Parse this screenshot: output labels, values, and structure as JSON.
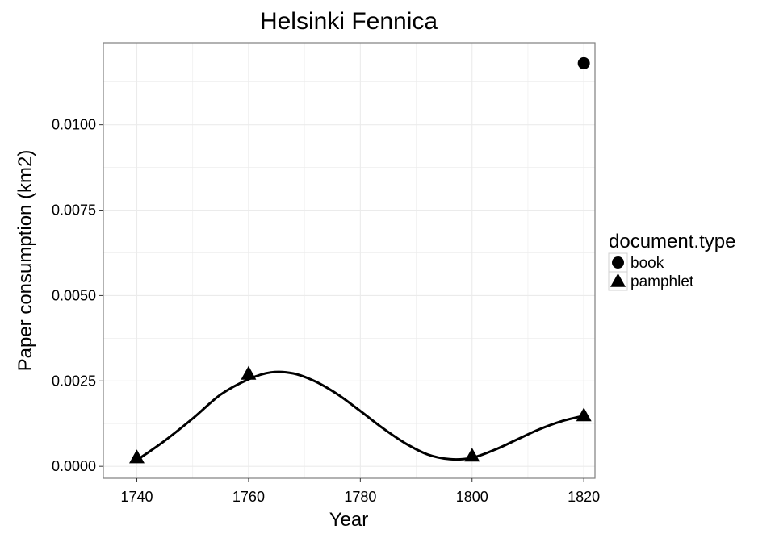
{
  "chart_data": {
    "type": "line",
    "title": "Helsinki Fennica",
    "xlabel": "Year",
    "ylabel": "Paper consumption (km2)",
    "xlim": [
      1734,
      1822
    ],
    "ylim": [
      -0.00035,
      0.0124
    ],
    "x_ticks": [
      1740,
      1760,
      1780,
      1800,
      1820
    ],
    "x_tick_labels": [
      "1740",
      "1760",
      "1780",
      "1800",
      "1820"
    ],
    "y_ticks": [
      0.0,
      0.0025,
      0.005,
      0.0075,
      0.01
    ],
    "y_tick_labels": [
      "0.0000",
      "0.0025",
      "0.0050",
      "0.0075",
      "0.0100"
    ],
    "grid": true,
    "legend": {
      "title": "document.type",
      "position": "right",
      "entries": [
        {
          "label": "book",
          "shape": "circle"
        },
        {
          "label": "pamphlet",
          "shape": "triangle"
        }
      ]
    },
    "series": [
      {
        "name": "book",
        "shape": "circle",
        "points": [
          {
            "x": 1820,
            "y": 0.0118
          }
        ]
      },
      {
        "name": "pamphlet",
        "shape": "triangle",
        "points": [
          {
            "x": 1740,
            "y": 0.00025
          },
          {
            "x": 1760,
            "y": 0.0027
          },
          {
            "x": 1800,
            "y": 0.0003
          },
          {
            "x": 1820,
            "y": 0.00148
          }
        ]
      }
    ],
    "smooth_curve": {
      "x": [
        1740,
        1745,
        1750,
        1755,
        1760,
        1764,
        1768,
        1772,
        1776,
        1780,
        1784,
        1788,
        1792,
        1796,
        1800,
        1804,
        1808,
        1812,
        1816,
        1820
      ],
      "y": [
        0.00018,
        0.00075,
        0.0014,
        0.0021,
        0.00255,
        0.00275,
        0.00272,
        0.00248,
        0.0021,
        0.00162,
        0.00112,
        0.00068,
        0.00035,
        0.00021,
        0.00025,
        0.00048,
        0.00078,
        0.00108,
        0.00132,
        0.00148
      ]
    },
    "colors": {
      "panel_border": "#7f7f7f",
      "grid": "#ebebeb",
      "marks": "#000000"
    }
  }
}
